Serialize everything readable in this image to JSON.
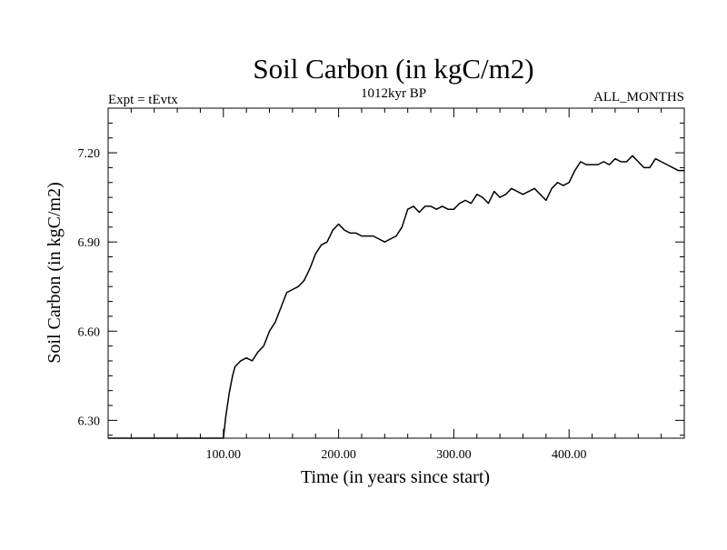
{
  "chart_data": {
    "type": "line",
    "title": "Soil Carbon (in kgC/m2)",
    "subtitle_left": "Expt = tEvtx",
    "subtitle_center": "1012kyr BP",
    "subtitle_right": "ALL_MONTHS",
    "xlabel": "Time (in years since start)",
    "ylabel": "Soil Carbon (in kgC/m2)",
    "xlim": [
      0,
      500
    ],
    "ylim": [
      6.24,
      7.35
    ],
    "x_ticks": [
      100,
      200,
      300,
      400
    ],
    "x_tick_labels": [
      "100.00",
      "200.00",
      "300.00",
      "400.00"
    ],
    "x_minor_step": 20,
    "y_ticks": [
      6.3,
      6.6,
      6.9,
      7.2
    ],
    "y_tick_labels": [
      "6.30",
      "6.60",
      "6.90",
      "7.20"
    ],
    "y_minor_step": 0.05,
    "grid": false,
    "line_color": "#000000",
    "series": [
      {
        "name": "Soil Carbon",
        "x": [
          0,
          100,
          102,
          105,
          108,
          110,
          115,
          120,
          125,
          130,
          135,
          140,
          145,
          150,
          155,
          160,
          165,
          170,
          175,
          180,
          185,
          190,
          195,
          200,
          205,
          210,
          215,
          220,
          225,
          230,
          235,
          240,
          245,
          250,
          255,
          260,
          265,
          270,
          275,
          280,
          285,
          290,
          295,
          300,
          305,
          310,
          315,
          320,
          325,
          330,
          335,
          340,
          345,
          350,
          355,
          360,
          365,
          370,
          375,
          380,
          385,
          390,
          395,
          400,
          405,
          410,
          415,
          420,
          425,
          430,
          435,
          440,
          445,
          450,
          455,
          460,
          465,
          470,
          475,
          480,
          485,
          490,
          495,
          500
        ],
        "y": [
          6.24,
          6.24,
          6.31,
          6.39,
          6.45,
          6.48,
          6.5,
          6.51,
          6.5,
          6.53,
          6.55,
          6.6,
          6.63,
          6.68,
          6.73,
          6.74,
          6.75,
          6.77,
          6.81,
          6.86,
          6.89,
          6.9,
          6.94,
          6.96,
          6.94,
          6.93,
          6.93,
          6.92,
          6.92,
          6.92,
          6.91,
          6.9,
          6.91,
          6.92,
          6.95,
          7.01,
          7.02,
          7.0,
          7.02,
          7.02,
          7.01,
          7.02,
          7.01,
          7.01,
          7.03,
          7.04,
          7.03,
          7.06,
          7.05,
          7.03,
          7.07,
          7.05,
          7.06,
          7.08,
          7.07,
          7.06,
          7.07,
          7.08,
          7.06,
          7.04,
          7.08,
          7.1,
          7.09,
          7.1,
          7.14,
          7.17,
          7.16,
          7.16,
          7.16,
          7.17,
          7.16,
          7.18,
          7.17,
          7.17,
          7.19,
          7.17,
          7.15,
          7.15,
          7.18,
          7.17,
          7.16,
          7.15,
          7.14,
          7.14
        ]
      }
    ]
  }
}
